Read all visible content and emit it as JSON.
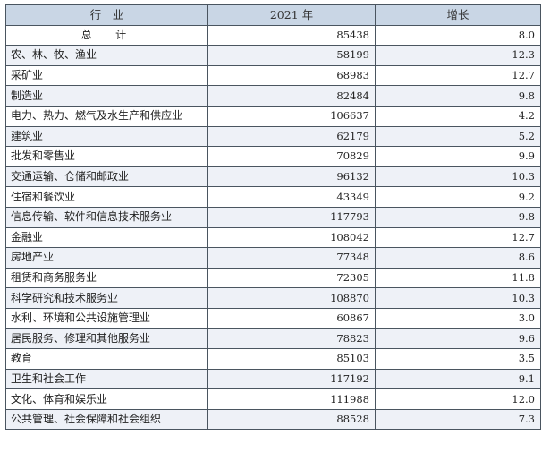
{
  "table": {
    "headers": [
      "行　业",
      "2021 年",
      "增长"
    ],
    "rows": [
      {
        "industry": "总　计",
        "value": "85438",
        "growth": "8.0"
      },
      {
        "industry": "农、林、牧、渔业",
        "value": "58199",
        "growth": "12.3"
      },
      {
        "industry": "采矿业",
        "value": "68983",
        "growth": "12.7"
      },
      {
        "industry": "制造业",
        "value": "82484",
        "growth": "9.8"
      },
      {
        "industry": "电力、热力、燃气及水生产和供应业",
        "value": "106637",
        "growth": "4.2"
      },
      {
        "industry": "建筑业",
        "value": "62179",
        "growth": "5.2"
      },
      {
        "industry": "批发和零售业",
        "value": "70829",
        "growth": "9.9"
      },
      {
        "industry": "交通运输、仓储和邮政业",
        "value": "96132",
        "growth": "10.3"
      },
      {
        "industry": "住宿和餐饮业",
        "value": "43349",
        "growth": "9.2"
      },
      {
        "industry": "信息传输、软件和信息技术服务业",
        "value": "117793",
        "growth": "9.8"
      },
      {
        "industry": "金融业",
        "value": "108042",
        "growth": "12.7"
      },
      {
        "industry": "房地产业",
        "value": "77348",
        "growth": "8.6"
      },
      {
        "industry": "租赁和商务服务业",
        "value": "72305",
        "growth": "11.8"
      },
      {
        "industry": "科学研究和技术服务业",
        "value": "108870",
        "growth": "10.3"
      },
      {
        "industry": "水利、环境和公共设施管理业",
        "value": "60867",
        "growth": "3.0"
      },
      {
        "industry": "居民服务、修理和其他服务业",
        "value": "78823",
        "growth": "9.6"
      },
      {
        "industry": "教育",
        "value": "85103",
        "growth": "3.5"
      },
      {
        "industry": "卫生和社会工作",
        "value": "117192",
        "growth": "9.1"
      },
      {
        "industry": "文化、体育和娱乐业",
        "value": "111988",
        "growth": "12.0"
      },
      {
        "industry": "公共管理、社会保障和社会组织",
        "value": "88528",
        "growth": "7.3"
      }
    ]
  },
  "colors": {
    "header_bg": "#c9d6e5",
    "stripe_bg": "#eef1f7",
    "border": "#4a5560"
  }
}
